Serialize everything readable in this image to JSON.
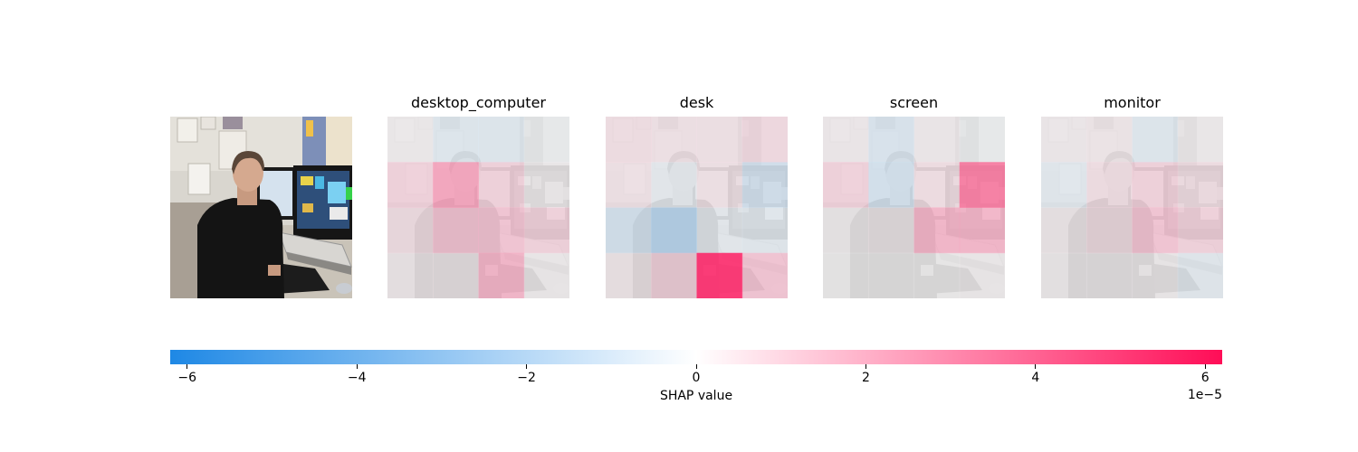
{
  "chart_data": {
    "type": "heatmap",
    "title": "",
    "panels": [
      "desktop_computer",
      "desk",
      "screen",
      "monitor"
    ],
    "grid": {
      "rows": 4,
      "cols": 4
    },
    "colorbar": {
      "label": "SHAP value",
      "offset_text": "1e−5",
      "min": -6.2,
      "max": 6.2,
      "ticks": [
        -6,
        -4,
        -2,
        0,
        2,
        4,
        6
      ],
      "tick_labels": [
        "−6",
        "−4",
        "−2",
        "0",
        "2",
        "4",
        "6"
      ],
      "negative_color": "#1e88e5",
      "positive_color": "#ff0d57"
    },
    "values": {
      "desktop_computer": [
        [
          0.2,
          -1.0,
          -1.0,
          -0.2
        ],
        [
          1.5,
          3.0,
          1.5,
          0.2
        ],
        [
          1.0,
          2.0,
          2.0,
          1.5
        ],
        [
          0.4,
          0.4,
          2.5,
          0.2
        ]
      ],
      "desk": [
        [
          1.0,
          0.8,
          0.8,
          1.2
        ],
        [
          0.8,
          -0.6,
          0.8,
          -1.6
        ],
        [
          -1.5,
          -2.5,
          -0.6,
          -0.8
        ],
        [
          0.5,
          1.5,
          5.5,
          2.0
        ]
      ],
      "screen": [
        [
          0.3,
          -1.2,
          0.3,
          -0.2
        ],
        [
          1.5,
          -1.5,
          1.0,
          4.0
        ],
        [
          0.2,
          0.4,
          2.5,
          2.5
        ],
        [
          0.1,
          0.1,
          0.1,
          0.2
        ]
      ],
      "monitor": [
        [
          0.3,
          0.5,
          -1.0,
          0.2
        ],
        [
          -0.8,
          1.0,
          1.5,
          1.0
        ],
        [
          0.4,
          1.0,
          2.0,
          1.5
        ],
        [
          0.2,
          0.2,
          0.2,
          -0.8
        ]
      ]
    },
    "background_opacity": 0.15
  }
}
